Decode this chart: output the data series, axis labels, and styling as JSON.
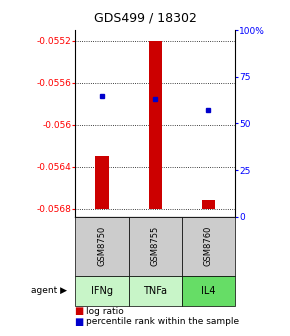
{
  "title": "GDS499 / 18302",
  "samples": [
    "GSM8750",
    "GSM8755",
    "GSM8760"
  ],
  "agents": [
    "IFNg",
    "TNFa",
    "IL4"
  ],
  "log_ratios": [
    -0.0563,
    -0.0552,
    -0.05672
  ],
  "baseline": -0.0568,
  "percentiles": [
    65,
    63,
    57
  ],
  "ylim_left": [
    -0.056875,
    -0.0551
  ],
  "ylim_right": [
    0,
    100
  ],
  "yticks_left": [
    -0.0568,
    -0.0564,
    -0.056,
    -0.0556,
    -0.0552
  ],
  "yticks_left_labels": [
    "-0.0568",
    "-0.0564",
    "-0.056",
    "-0.0556",
    "-0.0552"
  ],
  "yticks_right": [
    0,
    25,
    50,
    75,
    100
  ],
  "yticks_right_labels": [
    "0",
    "25",
    "50",
    "75",
    "100%"
  ],
  "bar_color": "#cc0000",
  "dot_color": "#0000cc",
  "sample_bg": "#cccccc",
  "agent_bg_colors": [
    "#c8f5c8",
    "#c8f5c8",
    "#66dd66"
  ],
  "bar_width": 0.25
}
